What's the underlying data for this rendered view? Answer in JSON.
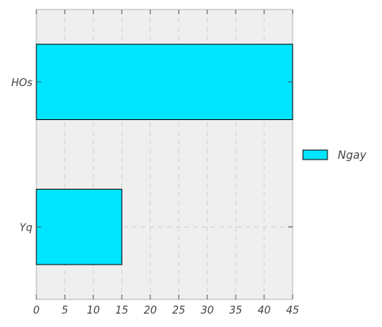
{
  "chart_data": {
    "type": "bar",
    "orientation": "horizontal",
    "categories": [
      "HOs",
      "Yq"
    ],
    "series": [
      {
        "name": "Ngay",
        "values": [
          45,
          15
        ],
        "color": "#00e5ff"
      }
    ],
    "xlim": [
      0,
      45
    ],
    "xticks": [
      0,
      5,
      10,
      15,
      20,
      25,
      30,
      35,
      40,
      45
    ],
    "grid": true,
    "legend_placement": "right"
  }
}
